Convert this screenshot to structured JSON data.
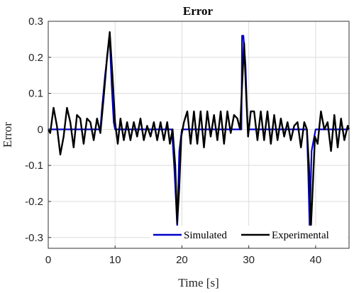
{
  "chart_data": {
    "type": "line",
    "title": "Error",
    "xlabel": "Time [s]",
    "ylabel": "Error",
    "xlim": [
      0,
      45
    ],
    "ylim": [
      -0.33,
      0.3
    ],
    "xticks": [
      0,
      10,
      20,
      30,
      40
    ],
    "yticks": [
      0.3,
      0.2,
      0.1,
      0,
      -0.1,
      -0.2,
      -0.3
    ],
    "yticklabels": [
      "0.3",
      "0.2",
      "0.1",
      "0",
      "-0.1",
      "-0.2",
      "-0.3"
    ],
    "grid": true,
    "legend": "bottom-right",
    "series": [
      {
        "name": "Simulated",
        "color": "#0000cc",
        "x": [
          0,
          7.8,
          8.0,
          8.5,
          9.0,
          9.2,
          9.5,
          9.8,
          10.0,
          18.5,
          18.9,
          19.3,
          19.6,
          20.0,
          28.9,
          29.0,
          29.2,
          29.5,
          29.8,
          30.0,
          38.7,
          38.9,
          39.1,
          39.4,
          40.0,
          45
        ],
        "y": [
          0,
          0,
          0.05,
          0.15,
          0.23,
          0.25,
          0.12,
          0.02,
          0,
          0,
          -0.12,
          -0.27,
          -0.06,
          0,
          0,
          0.26,
          0.26,
          0.18,
          0.02,
          0,
          0,
          -0.12,
          -0.27,
          -0.06,
          0,
          0
        ]
      },
      {
        "name": "Experimental",
        "color": "#000000",
        "x": [
          0,
          0.3,
          0.8,
          1.3,
          1.8,
          2.3,
          2.8,
          3.3,
          3.8,
          4.3,
          4.8,
          5.3,
          5.8,
          6.3,
          6.8,
          7.3,
          7.8,
          8.3,
          8.8,
          9.2,
          9.6,
          10.0,
          10.4,
          10.8,
          11.3,
          11.8,
          12.3,
          12.8,
          13.3,
          13.8,
          14.3,
          14.8,
          15.3,
          15.8,
          16.3,
          16.8,
          17.3,
          17.8,
          18.2,
          18.6,
          19.0,
          19.3,
          19.6,
          19.9,
          20.3,
          20.8,
          21.3,
          21.8,
          22.3,
          22.8,
          23.3,
          23.8,
          24.3,
          24.8,
          25.3,
          25.8,
          26.3,
          26.8,
          27.3,
          27.8,
          28.3,
          28.7,
          29.0,
          29.3,
          29.6,
          29.9,
          30.3,
          30.8,
          31.3,
          31.8,
          32.3,
          32.8,
          33.3,
          33.8,
          34.3,
          34.8,
          35.3,
          35.8,
          36.3,
          36.8,
          37.3,
          37.8,
          38.3,
          38.7,
          39.0,
          39.3,
          39.6,
          39.9,
          40.3,
          40.8,
          41.3,
          41.8,
          42.3,
          42.8,
          43.3,
          43.8,
          44.3,
          44.8,
          45
        ],
        "y": [
          0,
          -0.01,
          0.06,
          0.01,
          -0.07,
          -0.02,
          0.06,
          0.02,
          -0.05,
          0.04,
          0.03,
          -0.04,
          0.03,
          0.02,
          -0.03,
          0.03,
          -0.01,
          0.09,
          0.2,
          0.27,
          0.15,
          0.02,
          -0.04,
          0.03,
          -0.03,
          0.02,
          -0.03,
          0.02,
          -0.02,
          0.03,
          -0.03,
          0.01,
          -0.02,
          0.02,
          -0.03,
          0.02,
          -0.03,
          0.02,
          -0.04,
          0.0,
          -0.1,
          -0.26,
          -0.16,
          -0.02,
          0.02,
          0.05,
          -0.04,
          0.05,
          -0.04,
          0.05,
          -0.05,
          0.05,
          -0.02,
          0.04,
          -0.03,
          0.05,
          -0.04,
          0.05,
          -0.01,
          0.04,
          0.03,
          0.0,
          0.12,
          0.24,
          0.1,
          -0.02,
          0.05,
          0.05,
          -0.03,
          0.05,
          -0.03,
          0.05,
          -0.04,
          0.04,
          -0.03,
          0.03,
          -0.02,
          0.02,
          -0.03,
          0.01,
          0.02,
          -0.05,
          0.02,
          0.0,
          -0.1,
          -0.27,
          -0.15,
          -0.02,
          -0.04,
          0.05,
          0.0,
          0.02,
          -0.06,
          0.04,
          -0.05,
          0.03,
          -0.03,
          0.01,
          0.0
        ]
      }
    ]
  }
}
